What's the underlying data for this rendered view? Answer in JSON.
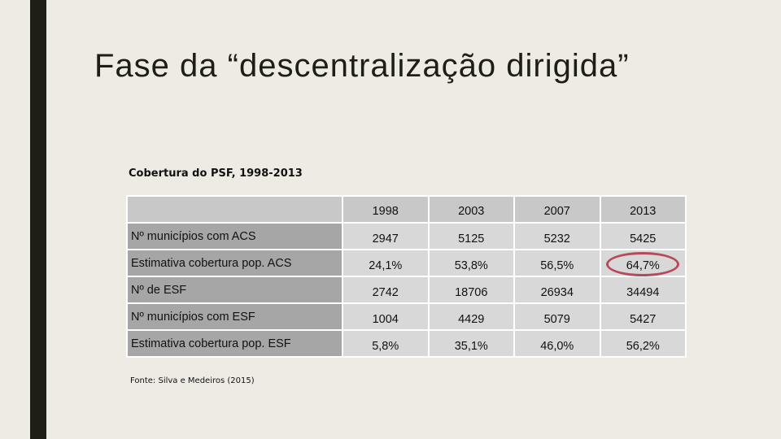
{
  "slide": {
    "title": "Fase da “descentralização dirigida”",
    "subtitle": "Cobertura do PSF, 1998-2013",
    "source": "Fonte: Silva e Medeiros (2015)"
  },
  "table": {
    "header": [
      "",
      "1998",
      "2003",
      "2007",
      "2013"
    ],
    "rows": [
      {
        "label": "Nº municípios com ACS",
        "values": [
          "2947",
          "5125",
          "5232",
          "5425"
        ]
      },
      {
        "label": "Estimativa cobertura pop. ACS",
        "values": [
          "24,1%",
          "53,8%",
          "56,5%",
          "64,7%"
        ]
      },
      {
        "label": "Nº de ESF",
        "values": [
          "2742",
          "18706",
          "26934",
          "34494"
        ]
      },
      {
        "label": "Nº municípios com ESF",
        "values": [
          "1004",
          "4429",
          "5079",
          "5427"
        ]
      },
      {
        "label": "Estimativa cobertura pop. ESF",
        "values": [
          "5,8%",
          "35,1%",
          "46,0%",
          "56,2%"
        ]
      }
    ]
  },
  "colors": {
    "background": "#EEEBE4",
    "accent_bar": "#1E1E14",
    "highlight_ring": "#B74A5A"
  }
}
